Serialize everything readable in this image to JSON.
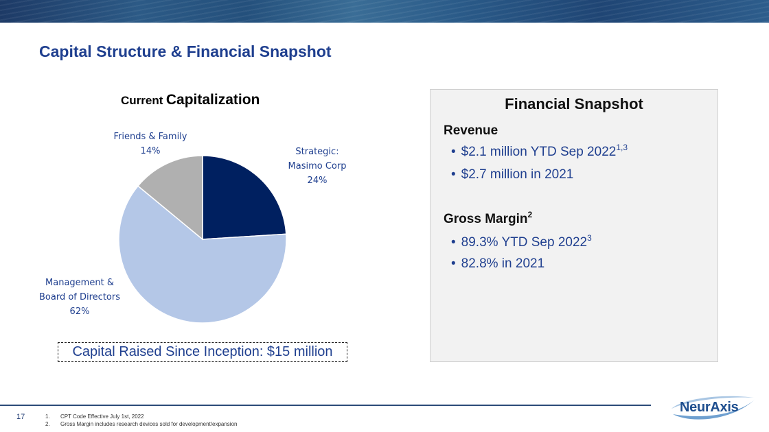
{
  "slide": {
    "title": "Capital Structure & Financial Snapshot",
    "page_number": "17"
  },
  "capitalization": {
    "title_small": "Current",
    "title_large": "Capitalization",
    "raised_text": "Capital Raised Since Inception: $15 million"
  },
  "chart_data": {
    "type": "pie",
    "title": "Current Capitalization",
    "slices": [
      {
        "name": "Strategic: Masimo Corp",
        "label_lines": [
          "Strategic:",
          "Masimo Corp",
          "24%"
        ],
        "value": 24,
        "color": "#002060"
      },
      {
        "name": "Management & Board of Directors",
        "label_lines": [
          "Management &",
          "Board of Directors",
          "62%"
        ],
        "value": 62,
        "color": "#b4c7e7"
      },
      {
        "name": "Friends & Family",
        "label_lines": [
          "Friends & Family",
          "14%"
        ],
        "value": 14,
        "color": "#b0b0b0"
      }
    ]
  },
  "snapshot": {
    "title": "Financial Snapshot",
    "revenue": {
      "heading": "Revenue",
      "bullets": [
        {
          "text": "$2.1 million YTD Sep 2022",
          "sup": "1,3"
        },
        {
          "text": "$2.7 million in 2021",
          "sup": ""
        }
      ]
    },
    "gross_margin": {
      "heading": "Gross Margin",
      "heading_sup": "2",
      "bullets": [
        {
          "text": "89.3% YTD Sep 2022",
          "sup": "3"
        },
        {
          "text": "82.8% in 2021",
          "sup": ""
        }
      ]
    },
    "bullet_glyph": "•"
  },
  "footnotes": [
    {
      "num": "1.",
      "text": "CPT Code Effective July 1st, 2022"
    },
    {
      "num": "2.",
      "text": "Gross Margin includes research devices sold for development/expansion"
    }
  ],
  "logo": {
    "text": "NeurAxis",
    "colors": {
      "primary": "#1f4f8f",
      "swoosh": "#6fa0d0"
    }
  }
}
